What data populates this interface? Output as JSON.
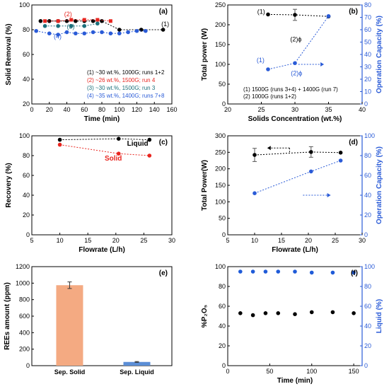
{
  "chart_data": [
    {
      "type": "line",
      "panel_label": "(a)",
      "xlabel": "Time (min)",
      "ylabel": "Solid Removal (%)",
      "xlim": [
        0,
        160
      ],
      "ylim": [
        20,
        100
      ],
      "xticks": [
        0,
        20,
        40,
        60,
        80,
        100,
        120,
        140,
        160
      ],
      "yticks": [
        20,
        40,
        60,
        80,
        100
      ],
      "series": [
        {
          "name": "(1) ~30 wt.%, 1000G; runs 1+2",
          "color": "#000000",
          "dashed": true,
          "marker": "circle",
          "x": [
            10,
            20,
            30,
            40,
            50,
            60,
            70,
            80,
            100,
            125,
            150
          ],
          "y": [
            87,
            87,
            87,
            87,
            87,
            87,
            87,
            87,
            80,
            80,
            80
          ]
        },
        {
          "name": "(2) ~26 wt.%, 1500G; run 4",
          "color": "#e8251f",
          "dashed": true,
          "marker": "square",
          "x": [
            15,
            30,
            45,
            60,
            75,
            90
          ],
          "y": [
            87,
            87,
            88,
            88,
            88,
            87
          ]
        },
        {
          "name": "(3) ~30 wt.%, 1500G; run 3",
          "color": "#1b6f7a",
          "dashed": true,
          "marker": "circle",
          "x": [
            15,
            30,
            45,
            60,
            75
          ],
          "y": [
            83,
            83,
            83,
            83,
            85
          ]
        },
        {
          "name": "(4) ~35 wt.%, 1400G; runs 7+8",
          "color": "#2a5bd7",
          "dashed": true,
          "marker": "circle",
          "x": [
            5,
            20,
            30,
            40,
            50,
            60,
            70,
            80,
            90,
            100,
            110,
            120,
            130
          ],
          "y": [
            79,
            77,
            76,
            78,
            77,
            77,
            78,
            78,
            77,
            77,
            78,
            79,
            79
          ]
        }
      ],
      "annotations": [
        {
          "text": "(1)",
          "x": 148,
          "y": 83,
          "color": "#000000"
        },
        {
          "text": "(2)",
          "x": 37,
          "y": 91,
          "color": "#e8251f"
        },
        {
          "text": "(3)",
          "x": 40,
          "y": 81,
          "color": "#1b6f7a"
        },
        {
          "text": "(4)",
          "x": 25,
          "y": 73,
          "color": "#2a5bd7"
        }
      ]
    },
    {
      "type": "line",
      "panel_label": "(b)",
      "xlabel": "Solids Concentration (wt.%)",
      "ylabel": "Total power (W)",
      "y2label": "Operation Capacity (%)",
      "xlim": [
        20,
        40
      ],
      "ylim": [
        0,
        250
      ],
      "y2lim": [
        0,
        80
      ],
      "xticks": [
        20,
        25,
        30,
        35,
        40
      ],
      "yticks": [
        0,
        50,
        100,
        150,
        200,
        250
      ],
      "y2ticks": [
        0,
        10,
        20,
        30,
        40,
        50,
        60,
        70,
        80
      ],
      "series": [
        {
          "name": "Total power",
          "axis": "left",
          "color": "#000000",
          "dashed": true,
          "marker": "circle",
          "x": [
            26,
            30,
            35
          ],
          "y": [
            226,
            225,
            221
          ],
          "yerr": [
            0,
            14,
            0
          ]
        },
        {
          "name": "Operation Capacity",
          "axis": "right",
          "color": "#2a5bd7",
          "dashed": true,
          "marker": "circle",
          "x": [
            26,
            30,
            35
          ],
          "y": [
            28,
            33,
            71
          ]
        }
      ],
      "annotations": [
        {
          "text": "(1)",
          "x": 24.4,
          "y": 228,
          "color": "#000000"
        },
        {
          "text": "(2)ϕ",
          "x": 29.3,
          "y": 158,
          "color": "#000000"
        },
        {
          "text": "(1)",
          "x": 24.3,
          "y": 105,
          "color": "#2a5bd7"
        },
        {
          "text": "(2)ϕ",
          "x": 29.4,
          "y": 72,
          "color": "#2a5bd7"
        }
      ],
      "notes": [
        "(1) 1500G (runs 3+4) + 1400G (run 7)",
        "(2) 1000G (runs 1+2)"
      ]
    },
    {
      "type": "line",
      "panel_label": "(c)",
      "xlabel": "Flowrate (L/h)",
      "ylabel": "Recovery (%)",
      "xlim": [
        5,
        30
      ],
      "ylim": [
        0,
        100
      ],
      "xticks": [
        5,
        10,
        15,
        20,
        25,
        30
      ],
      "yticks": [
        0,
        20,
        40,
        60,
        80,
        100
      ],
      "series": [
        {
          "name": "Liquid",
          "color": "#000000",
          "dashed": true,
          "marker": "circle",
          "x": [
            10,
            20.5,
            26
          ],
          "y": [
            96,
            97,
            96
          ]
        },
        {
          "name": "Solid",
          "color": "#e8251f",
          "dashed": true,
          "marker": "circle",
          "x": [
            10,
            20.5,
            26
          ],
          "y": [
            91,
            82,
            80
          ]
        }
      ],
      "annotations": [
        {
          "text": "Liquid",
          "x": 22,
          "y": 90,
          "color": "#000000"
        },
        {
          "text": "Solid",
          "x": 18,
          "y": 75,
          "color": "#e8251f"
        }
      ]
    },
    {
      "type": "line",
      "panel_label": "(d)",
      "xlabel": "Flowrate (L/h)",
      "ylabel": "Total Power(W)",
      "y2label": "Operation Capacity (%)",
      "xlim": [
        5,
        30
      ],
      "ylim": [
        0,
        300
      ],
      "y2lim": [
        0,
        100
      ],
      "xticks": [
        5,
        10,
        15,
        20,
        25,
        30
      ],
      "yticks": [
        0,
        50,
        100,
        150,
        200,
        250,
        300
      ],
      "y2ticks": [
        0,
        20,
        40,
        60,
        80,
        100
      ],
      "series": [
        {
          "name": "Total Power",
          "axis": "left",
          "color": "#000000",
          "dashed": true,
          "marker": "circle",
          "x": [
            10,
            20.5,
            26
          ],
          "y": [
            242,
            251,
            249
          ],
          "yerr": [
            20,
            16,
            0
          ]
        },
        {
          "name": "Operation Capacity",
          "axis": "right",
          "color": "#2a5bd7",
          "dashed": true,
          "marker": "circle",
          "x": [
            10,
            20.5,
            26
          ],
          "y": [
            42,
            64,
            75
          ]
        }
      ]
    },
    {
      "type": "bar",
      "panel_label": "(e)",
      "ylabel": "REEs amount (ppm)",
      "categories": [
        "Sep. Solid",
        "Sep. Liquid"
      ],
      "values": [
        975,
        45
      ],
      "errors": [
        40,
        5
      ],
      "colors": [
        "#f4aa82",
        "#5b8ed6"
      ],
      "ylim": [
        0,
        1200
      ],
      "yticks": [
        0,
        200,
        400,
        600,
        800,
        1000,
        1200
      ]
    },
    {
      "type": "scatter",
      "panel_label": "(f)",
      "xlabel": "Time (min)",
      "ylabel": "%P₂O₅",
      "y2label": "Liquid (%)",
      "xlim": [
        0,
        160
      ],
      "ylim": [
        0,
        100
      ],
      "y2lim": [
        0,
        100
      ],
      "xticks": [
        0,
        50,
        100,
        150
      ],
      "yticks": [
        0,
        20,
        40,
        60,
        80,
        100
      ],
      "y2ticks": [
        0,
        20,
        40,
        60,
        80,
        100
      ],
      "series": [
        {
          "name": "%P₂O₅",
          "axis": "left",
          "color": "#000000",
          "x": [
            15,
            30,
            45,
            60,
            80,
            100,
            125,
            150
          ],
          "y": [
            53,
            51,
            53,
            53,
            52,
            54,
            54,
            53
          ]
        },
        {
          "name": "Liquid (%)",
          "axis": "right",
          "color": "#1f5bd8",
          "x": [
            15,
            30,
            45,
            60,
            80,
            100,
            125,
            150
          ],
          "y": [
            95,
            95,
            95,
            95,
            95,
            94,
            94,
            94
          ]
        }
      ]
    }
  ]
}
